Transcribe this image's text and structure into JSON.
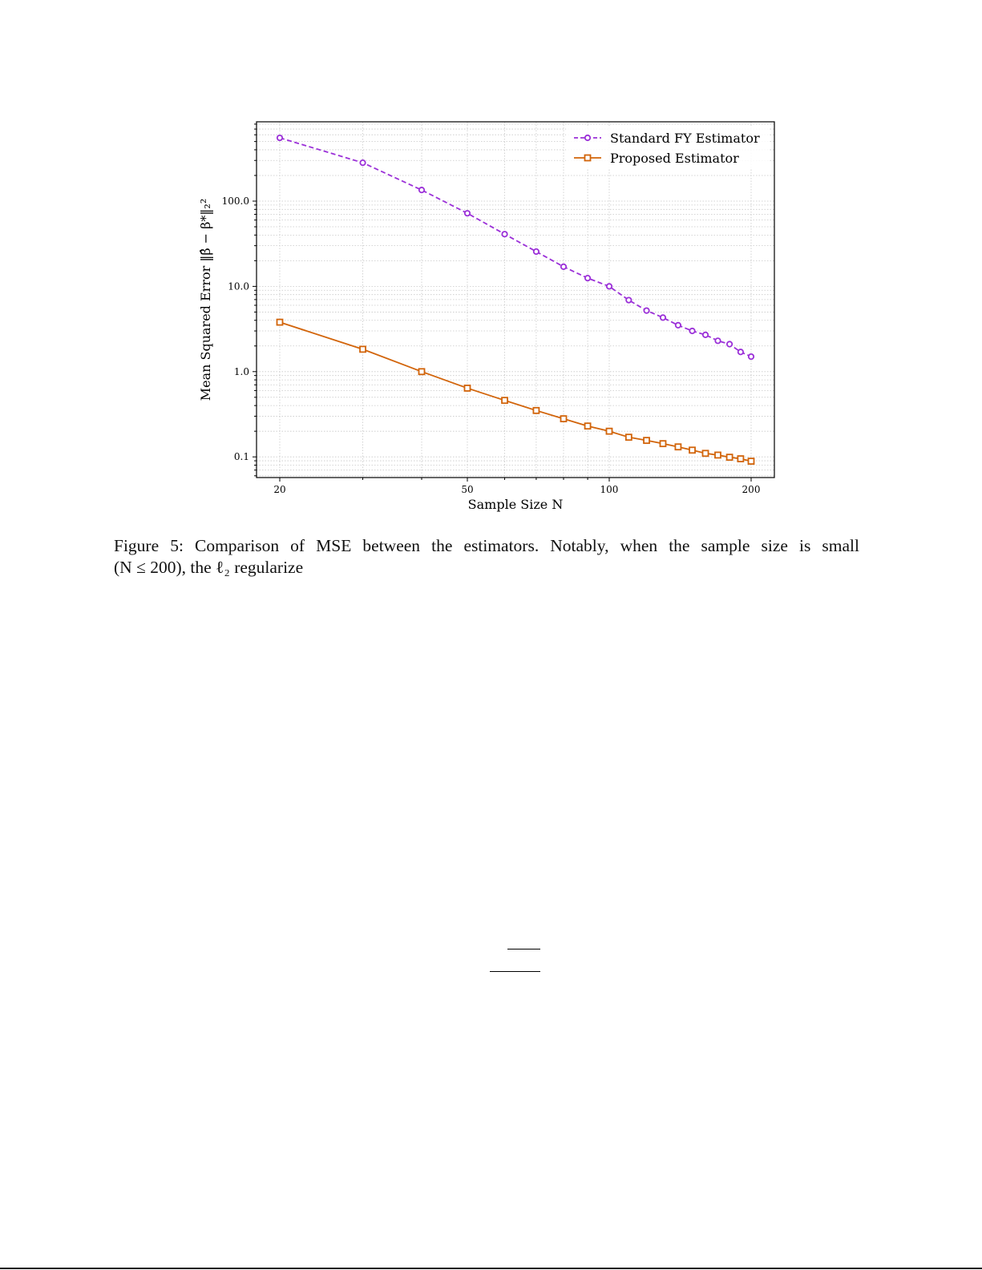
{
  "figure": {
    "caption_line1": "Figure 5:  Comparison of MSE between the estimators.  Notably, when the sample size is small",
    "caption_line2": "(N ≤ 200), the ℓ₂ regularize"
  },
  "colors": {
    "standard": "#9b30d8",
    "proposed": "#d2640a",
    "grid": "#c8c8c8",
    "axis": "#000000"
  },
  "chart_data": {
    "type": "line",
    "title": "",
    "xlabel": "Sample Size N",
    "ylabel": "Mean Squared Error ‖β̂ − β*‖₂²",
    "xscale": "log",
    "yscale": "log",
    "xlim": [
      18.8,
      215
    ],
    "ylim": [
      0.06,
      900
    ],
    "x_ticks": [
      20,
      50,
      100,
      200
    ],
    "x_tick_labels": [
      "20",
      "50",
      "100",
      "200"
    ],
    "y_ticks": [
      0.1,
      1.0,
      10.0,
      100.0
    ],
    "y_tick_labels": [
      "0.1",
      "1.0",
      "10.0",
      "100.0"
    ],
    "grid": true,
    "legend_position": "upper right",
    "x": [
      20,
      30,
      40,
      50,
      60,
      70,
      80,
      90,
      100,
      110,
      120,
      130,
      140,
      150,
      160,
      170,
      180,
      190,
      200
    ],
    "series": [
      {
        "name": "Standard FY Estimator",
        "style": "dashed",
        "marker": "circle",
        "color": "#9b30d8",
        "values": [
          552,
          282,
          135,
          72,
          41,
          25.6,
          17,
          12.5,
          10,
          6.9,
          5.2,
          4.3,
          3.5,
          3.0,
          2.7,
          2.3,
          2.1,
          1.7,
          1.5
        ]
      },
      {
        "name": "Proposed Estimator",
        "style": "solid",
        "marker": "square",
        "color": "#d2640a",
        "values": [
          3.8,
          1.83,
          1.0,
          0.64,
          0.46,
          0.35,
          0.28,
          0.23,
          0.2,
          0.17,
          0.156,
          0.143,
          0.131,
          0.12,
          0.11,
          0.105,
          0.099,
          0.095,
          0.089
        ]
      }
    ]
  }
}
